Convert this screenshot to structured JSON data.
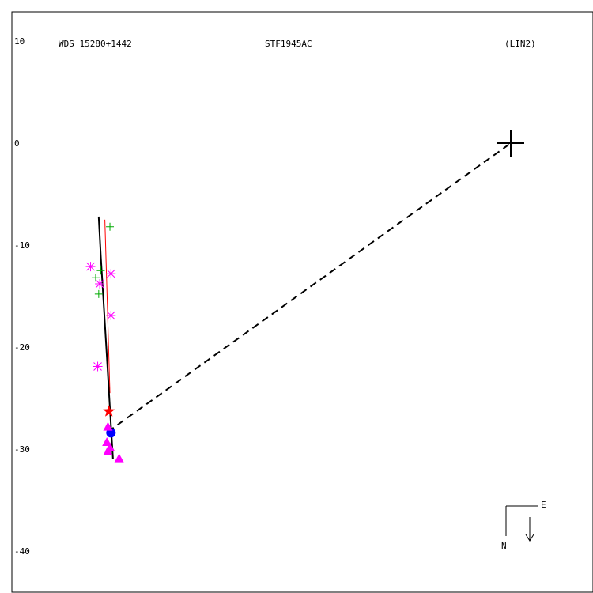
{
  "chart_data": {
    "type": "scatter",
    "header": {
      "left": "WDS 15280+1442",
      "center": "STF1945AC",
      "right": "(LIN2)"
    },
    "ylim": [
      -44,
      13
    ],
    "yticks": [
      10,
      0,
      -10,
      -20,
      -30,
      -40
    ],
    "ytick_labels": [
      "10",
      "0",
      "-10",
      "-20",
      "-30",
      "-40"
    ],
    "grid": false,
    "primary": {
      "x": 0,
      "y": 0
    },
    "connector": {
      "from": {
        "x": -39.5,
        "y": -28.3
      },
      "to": {
        "x": 0,
        "y": 0
      },
      "style": "dashed"
    },
    "orbit_black": [
      {
        "x": -40.4,
        "y": -7.2
      },
      {
        "x": -40.2,
        "y": -11.0
      },
      {
        "x": -39.9,
        "y": -16.0
      },
      {
        "x": -39.6,
        "y": -21.0
      },
      {
        "x": -39.3,
        "y": -26.0
      },
      {
        "x": -39.0,
        "y": -31.0
      }
    ],
    "orbit_red": [
      {
        "x": -39.8,
        "y": -7.5
      },
      {
        "x": -39.3,
        "y": -24.5
      }
    ],
    "series": [
      {
        "name": "green-plus",
        "color": "#00aa00",
        "marker": "plus",
        "points": [
          {
            "x": -39.3,
            "y": -8.2
          },
          {
            "x": -40.7,
            "y": -13.2
          },
          {
            "x": -40.2,
            "y": -12.5
          },
          {
            "x": -40.4,
            "y": -14.8
          }
        ]
      },
      {
        "name": "magenta-asterisk",
        "color": "#ff00ff",
        "marker": "asterisk",
        "points": [
          {
            "x": -41.2,
            "y": -12.1
          },
          {
            "x": -39.2,
            "y": -12.8
          },
          {
            "x": -40.3,
            "y": -13.8
          },
          {
            "x": -39.2,
            "y": -16.9
          },
          {
            "x": -40.5,
            "y": -21.9
          }
        ]
      },
      {
        "name": "red-star",
        "color": "#ff0000",
        "marker": "star",
        "points": [
          {
            "x": -39.4,
            "y": -26.3
          }
        ]
      },
      {
        "name": "blue-circle",
        "color": "#0000ff",
        "marker": "circle",
        "points": [
          {
            "x": -39.2,
            "y": -28.4
          }
        ]
      },
      {
        "name": "magenta-triangle",
        "color": "#ff00ff",
        "marker": "triangle",
        "points": [
          {
            "x": -39.5,
            "y": -27.8
          },
          {
            "x": -39.6,
            "y": -29.3
          },
          {
            "x": -39.5,
            "y": -30.2
          },
          {
            "x": -39.3,
            "y": -29.8
          },
          {
            "x": -38.4,
            "y": -30.9
          }
        ]
      }
    ],
    "orientation": {
      "north": "N",
      "east": "E"
    }
  }
}
